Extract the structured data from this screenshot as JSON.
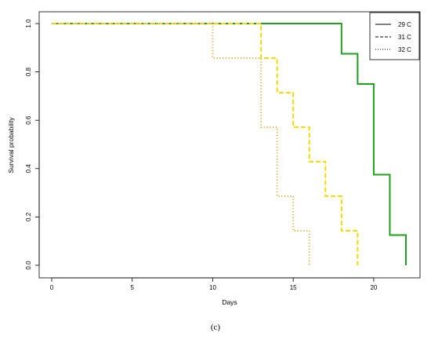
{
  "chart_data": {
    "type": "line",
    "subtype": "step",
    "xlabel": "Days",
    "ylabel": "Survival probability",
    "caption": "(c)",
    "xlim": [
      0,
      22
    ],
    "ylim": [
      0,
      1
    ],
    "x_ticks": [
      0,
      5,
      10,
      15,
      20
    ],
    "y_ticks": [
      0.0,
      0.2,
      0.4,
      0.6,
      0.8,
      1.0
    ],
    "y_tick_labels": [
      "0.0",
      "0.2",
      "0.4",
      "0.6",
      "0.8",
      "1.0"
    ],
    "grid": false,
    "legend_position": "top-right",
    "series": [
      {
        "name": "29 C",
        "color": "#1fa01f",
        "line_style": "solid",
        "x": [
          0,
          18,
          19,
          20,
          21,
          22
        ],
        "y": [
          1.0,
          0.875,
          0.75,
          0.375,
          0.125,
          0.0
        ]
      },
      {
        "name": "31 C",
        "color": "#f2dc00",
        "line_style": "dashed",
        "x": [
          0,
          13,
          14,
          15,
          16,
          17,
          18,
          19
        ],
        "y": [
          1.0,
          0.857,
          0.714,
          0.571,
          0.429,
          0.286,
          0.143,
          0.0
        ]
      },
      {
        "name": "32 C",
        "color": "#e0b040",
        "line_style": "dotted",
        "x": [
          0,
          10,
          13,
          14,
          15,
          16
        ],
        "y": [
          1.0,
          0.857,
          0.571,
          0.286,
          0.143,
          0.0
        ]
      }
    ]
  }
}
